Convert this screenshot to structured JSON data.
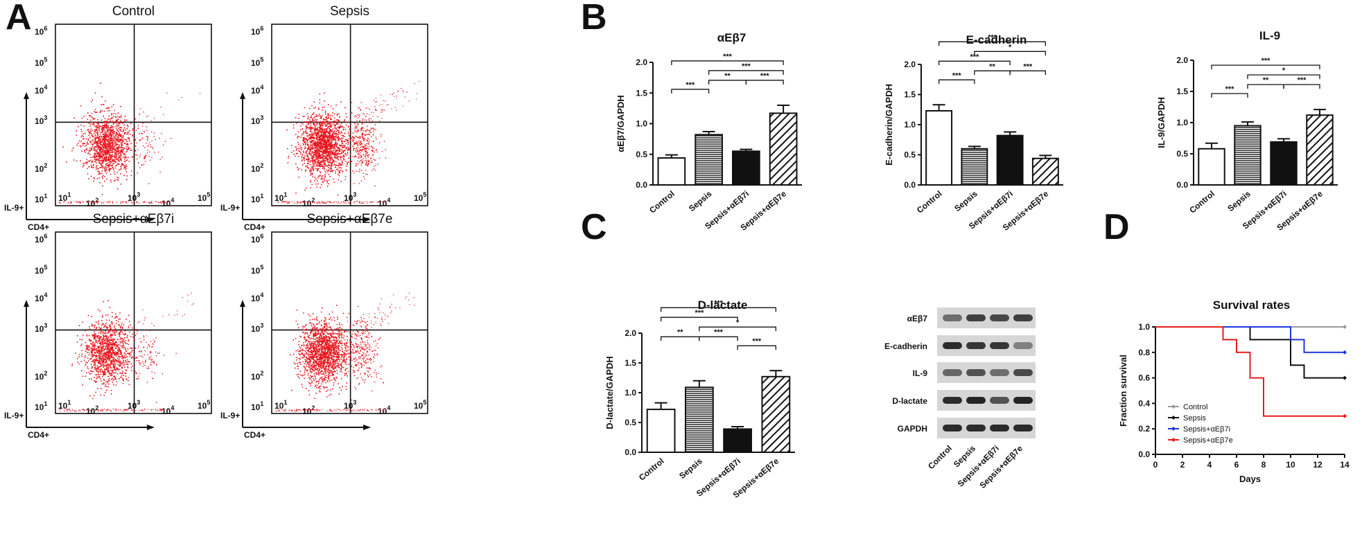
{
  "panels": {
    "A": {
      "letter": "A",
      "xlabel": "CD4+",
      "ylabel": "IL-9+",
      "decade_labels": [
        {
          "base": "10",
          "exp": "1"
        },
        {
          "base": "10",
          "exp": "2"
        },
        {
          "base": "10",
          "exp": "3"
        },
        {
          "base": "10",
          "exp": "4"
        },
        {
          "base": "10",
          "exp": "5"
        },
        {
          "base": "10",
          "exp": "6"
        }
      ],
      "dot_color": "#e8141c",
      "plots": [
        {
          "title": "Control",
          "density": 1.0,
          "tail": 0.2
        },
        {
          "title": "Sepsis",
          "density": 1.3,
          "tail": 1.0
        },
        {
          "title": "Sepsis+αEβ7i",
          "density": 0.9,
          "tail": 0.3
        },
        {
          "title": "Sepsis+αEβ7e",
          "density": 1.2,
          "tail": 0.8
        }
      ]
    },
    "B": {
      "letter": "B"
    },
    "C": {
      "letter": "C"
    },
    "D": {
      "letter": "D"
    },
    "blot": {
      "bands": [
        "αEβ7",
        "E-cadherin",
        "IL-9",
        "D-lactate",
        "GAPDH"
      ],
      "lanes": [
        "Control",
        "Sepsis",
        "Sepsis+αEβ7i",
        "Sepsis+αEβ7e"
      ]
    }
  },
  "chart_data": [
    {
      "type": "bar",
      "panel": "B",
      "title": "αEβ7",
      "ylabel": "αEβ7/GAPDH",
      "categories": [
        "Control",
        "Sepsis",
        "Sepsis+αEβ7i",
        "Sepsis+αEβ7e"
      ],
      "values": [
        0.44,
        0.82,
        0.55,
        1.17
      ],
      "errors": [
        0.05,
        0.05,
        0.03,
        0.13
      ],
      "ylim": [
        0,
        2.0
      ],
      "yticks": [
        "0.0",
        "0.5",
        "1.0",
        "1.5",
        "2.0"
      ],
      "patterns": [
        "open",
        "hlines",
        "solid",
        "diag"
      ],
      "brackets": [
        {
          "from": 0,
          "to": 3,
          "label": "***"
        },
        {
          "from": 1,
          "to": 3,
          "label": "***"
        },
        {
          "from": 2,
          "to": 3,
          "label": "***"
        },
        {
          "from": 0,
          "to": 1,
          "label": "***"
        },
        {
          "from": 1,
          "to": 2,
          "label": "**"
        }
      ]
    },
    {
      "type": "bar",
      "panel": "B",
      "title": "E-cadherin",
      "ylabel": "E-cadherin/GAPDH",
      "categories": [
        "Control",
        "Sepsis",
        "Sepsis+αEβ7i",
        "Sepsis+αEβ7e"
      ],
      "values": [
        1.23,
        0.6,
        0.82,
        0.44
      ],
      "errors": [
        0.1,
        0.04,
        0.06,
        0.05
      ],
      "ylim": [
        0,
        2.0
      ],
      "yticks": [
        "0.0",
        "0.5",
        "1.0",
        "1.5",
        "2.0"
      ],
      "patterns": [
        "open",
        "hlines",
        "solid",
        "diag"
      ],
      "brackets": [
        {
          "from": 0,
          "to": 3,
          "label": "***"
        },
        {
          "from": 0,
          "to": 2,
          "label": "***"
        },
        {
          "from": 0,
          "to": 1,
          "label": "***"
        },
        {
          "from": 1,
          "to": 3,
          "label": "*"
        },
        {
          "from": 1,
          "to": 2,
          "label": "**"
        },
        {
          "from": 2,
          "to": 3,
          "label": "***"
        }
      ]
    },
    {
      "type": "bar",
      "panel": "B",
      "title": "IL-9",
      "ylabel": "IL-9/GAPDH",
      "categories": [
        "Control",
        "Sepsis",
        "Sepsis+αEβ7i",
        "Sepsis+αEβ7e"
      ],
      "values": [
        0.58,
        0.95,
        0.69,
        1.12
      ],
      "errors": [
        0.09,
        0.06,
        0.05,
        0.09
      ],
      "ylim": [
        0,
        2.0
      ],
      "yticks": [
        "0.0",
        "0.5",
        "1.0",
        "1.5",
        "2.0"
      ],
      "patterns": [
        "open",
        "hlines",
        "solid",
        "diag"
      ],
      "brackets": [
        {
          "from": 0,
          "to": 3,
          "label": "***"
        },
        {
          "from": 1,
          "to": 3,
          "label": "*"
        },
        {
          "from": 2,
          "to": 3,
          "label": "***"
        },
        {
          "from": 0,
          "to": 1,
          "label": "***"
        },
        {
          "from": 1,
          "to": 2,
          "label": "**"
        }
      ]
    },
    {
      "type": "bar",
      "panel": "C",
      "title": "D-lactate",
      "ylabel": "D-lactate/GAPDH",
      "categories": [
        "Control",
        "Sepsis",
        "Sepsis+αEβ7i",
        "Sepsis+αEβ7e"
      ],
      "values": [
        0.72,
        1.09,
        0.39,
        1.27
      ],
      "errors": [
        0.11,
        0.11,
        0.04,
        0.1
      ],
      "ylim": [
        0,
        2.0
      ],
      "yticks": [
        "0.0",
        "0.5",
        "1.0",
        "1.5",
        "2.0"
      ],
      "patterns": [
        "open",
        "hlines",
        "solid",
        "diag"
      ],
      "brackets": [
        {
          "from": 0,
          "to": 3,
          "label": "***"
        },
        {
          "from": 1,
          "to": 3,
          "label": "*"
        },
        {
          "from": 0,
          "to": 2,
          "label": "***"
        },
        {
          "from": 2,
          "to": 3,
          "label": "***"
        },
        {
          "from": 0,
          "to": 1,
          "label": "**"
        },
        {
          "from": 1,
          "to": 2,
          "label": "***"
        }
      ]
    },
    {
      "type": "line",
      "panel": "D",
      "title": "Survival rates",
      "xlabel": "Days",
      "ylabel": "Fraction survival",
      "xlim": [
        0,
        14
      ],
      "ylim": [
        0,
        1.0
      ],
      "xticks": [
        "0",
        "2",
        "4",
        "6",
        "8",
        "10",
        "12",
        "14"
      ],
      "yticks": [
        "0.0",
        "0.2",
        "0.4",
        "0.6",
        "0.8",
        "1.0"
      ],
      "step": true,
      "legend": "lower-left",
      "series": [
        {
          "name": "Control",
          "color": "#9a9a9a",
          "x": [
            0,
            14
          ],
          "y": [
            1.0,
            1.0
          ]
        },
        {
          "name": "Sepsis",
          "color": "#111111",
          "x": [
            0,
            7,
            10,
            11,
            14
          ],
          "y": [
            1.0,
            0.9,
            0.7,
            0.6,
            0.6
          ]
        },
        {
          "name": "Sepsis+αEβ7i",
          "color": "#1f35e0",
          "x": [
            0,
            10,
            11,
            14
          ],
          "y": [
            1.0,
            0.9,
            0.8,
            0.8
          ]
        },
        {
          "name": "Sepsis+αEβ7e",
          "color": "#e51c1c",
          "x": [
            0,
            5,
            6,
            7,
            8,
            14
          ],
          "y": [
            1.0,
            0.9,
            0.8,
            0.6,
            0.3,
            0.3
          ]
        }
      ]
    }
  ]
}
